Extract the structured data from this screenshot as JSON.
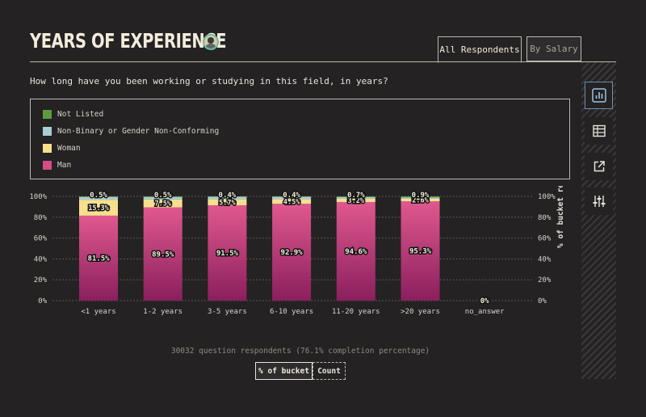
{
  "header": {
    "title": "YEARS OF EXPERIENCE"
  },
  "tabs": [
    {
      "label": "All Respondents",
      "active": true
    },
    {
      "label": "By Salary",
      "active": false
    }
  ],
  "question": "How long have you been working or studying in this field, in years?",
  "legend": [
    {
      "label": "Not Listed",
      "color": "#5e9a3e"
    },
    {
      "label": "Non-Binary or Gender Non-Conforming",
      "color": "#a9cdd3"
    },
    {
      "label": "Woman",
      "color": "#f6e08e"
    },
    {
      "label": "Man",
      "color": "#d44d86"
    }
  ],
  "side_icons": [
    "bar-chart-icon",
    "table-icon",
    "external-link-icon",
    "sliders-icon"
  ],
  "chart_data": {
    "type": "bar",
    "stacked": true,
    "categories": [
      "<1 years",
      "1-2 years",
      "3-5 years",
      "6-10 years",
      "11-20 years",
      ">20 years",
      "no_answer"
    ],
    "series": [
      {
        "name": "Man",
        "values": [
          81.5,
          89.5,
          91.5,
          92.9,
          94.6,
          95.3,
          0
        ]
      },
      {
        "name": "Woman",
        "values": [
          15.3,
          7.5,
          5.7,
          4.5,
          3.2,
          2.6,
          0
        ]
      },
      {
        "name": "Non-Binary or Gender Non-Conforming",
        "values": [
          2.7,
          2.5,
          2.4,
          2.2,
          1.5,
          1.2,
          0
        ]
      },
      {
        "name": "Not Listed",
        "values": [
          0.5,
          0.5,
          0.4,
          0.4,
          0.7,
          0.9,
          0
        ]
      }
    ],
    "labels": {
      "man": [
        "81.5%",
        "89.5%",
        "91.5%",
        "92.9%",
        "94.6%",
        "95.3%",
        "0%"
      ],
      "woman": [
        "15.3%",
        "7.5%",
        "5.7%",
        "4.5%",
        "3.2%",
        "2.6%",
        ""
      ],
      "top": [
        "0.5%",
        "0.5%",
        "0.4%",
        "0.4%",
        "0.7%",
        "0.9%",
        ""
      ]
    },
    "y_ticks": [
      "0%",
      "20%",
      "40%",
      "60%",
      "80%",
      "100%"
    ],
    "ylabel": "% of bucket respondents",
    "ylim": [
      0,
      100
    ]
  },
  "footer": {
    "respondents": "30032 question respondents (76.1% completion percentage)",
    "toggle_pct": "% of bucket",
    "toggle_count": "Count"
  }
}
